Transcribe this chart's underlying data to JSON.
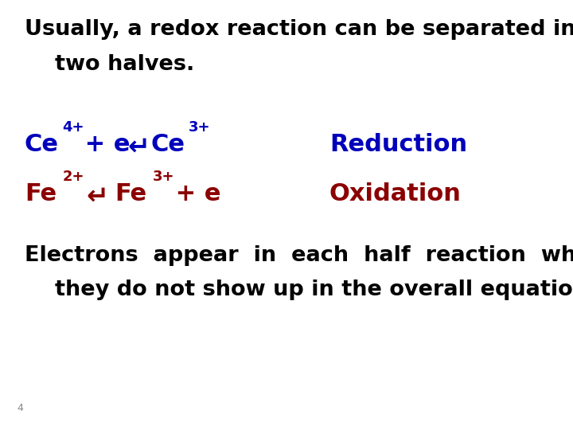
{
  "bg_color": "#ffffff",
  "title_line1": "Usually, a redox reaction can be separated into",
  "title_line2": "    two halves.",
  "title_color": "#000000",
  "title_fontsize": 19.5,
  "footer_line1": "Electrons  appear  in  each  half  reaction  while",
  "footer_line2": "    they do not show up in the overall equations.",
  "footer_color": "#000000",
  "footer_fontsize": 19.5,
  "eq1_color": "#0000bb",
  "eq1_label": "Reduction",
  "eq1_label_color": "#0000bb",
  "eq2_color": "#8b0000",
  "eq2_label": "Oxidation",
  "eq2_label_color": "#8b0000",
  "slide_number": "4",
  "slide_number_color": "#888888",
  "slide_number_fontsize": 9
}
